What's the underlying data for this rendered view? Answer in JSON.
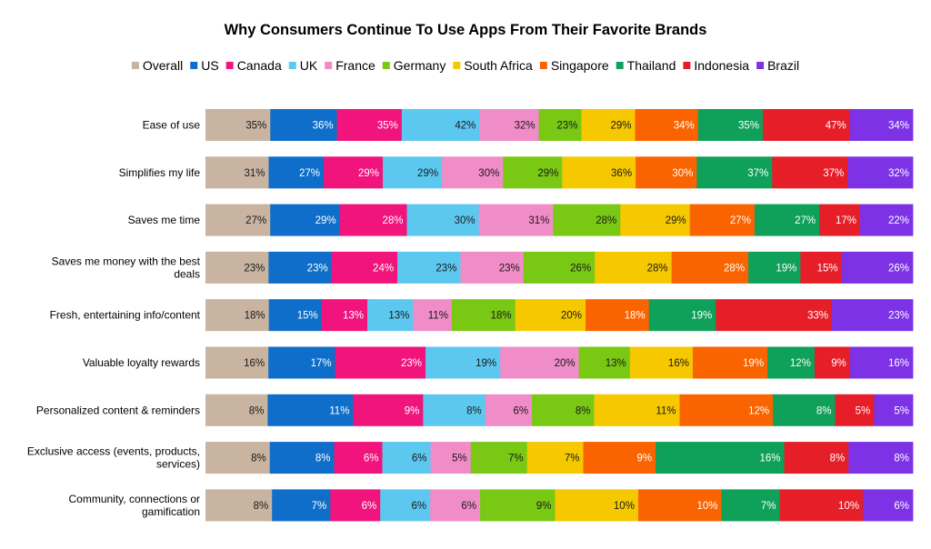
{
  "chart_data": {
    "type": "bar",
    "orientation": "horizontal",
    "stacked": true,
    "title": "Why Consumers Continue To Use Apps From Their Favorite Brands",
    "legend_position": "top",
    "grid": false,
    "value_suffix": "%",
    "categories": [
      "Ease of use",
      "Simplifies my life",
      "Saves me time",
      "Saves me money with the best deals",
      "Fresh, entertaining info/content",
      "Valuable loyalty rewards",
      "Personalized content & reminders",
      "Exclusive access (events, products, services)",
      "Community, connections or gamification"
    ],
    "series": [
      {
        "name": "Overall",
        "color": "#c8b4a0",
        "values": [
          35,
          31,
          27,
          23,
          18,
          16,
          8,
          8,
          8
        ]
      },
      {
        "name": "US",
        "color": "#0f6ec9",
        "values": [
          36,
          27,
          29,
          23,
          15,
          17,
          11,
          8,
          7
        ]
      },
      {
        "name": "Canada",
        "color": "#f0147c",
        "values": [
          35,
          29,
          28,
          24,
          13,
          23,
          9,
          6,
          6
        ]
      },
      {
        "name": "UK",
        "color": "#5cc8f0",
        "values": [
          42,
          29,
          30,
          23,
          13,
          19,
          8,
          6,
          6
        ]
      },
      {
        "name": "France",
        "color": "#f08cc8",
        "values": [
          32,
          30,
          31,
          23,
          11,
          20,
          6,
          5,
          6
        ]
      },
      {
        "name": "Germany",
        "color": "#78c814",
        "values": [
          23,
          29,
          28,
          26,
          18,
          13,
          8,
          7,
          9
        ]
      },
      {
        "name": "South Africa",
        "color": "#f5c800",
        "values": [
          29,
          36,
          29,
          28,
          20,
          16,
          11,
          7,
          10
        ]
      },
      {
        "name": "Singapore",
        "color": "#fa6400",
        "values": [
          34,
          30,
          27,
          28,
          18,
          19,
          12,
          9,
          10
        ]
      },
      {
        "name": "Thailand",
        "color": "#0fa05a",
        "values": [
          35,
          37,
          27,
          19,
          19,
          12,
          8,
          16,
          7
        ]
      },
      {
        "name": "Indonesia",
        "color": "#e61e28",
        "values": [
          47,
          37,
          17,
          15,
          33,
          9,
          5,
          8,
          10
        ]
      },
      {
        "name": "Brazil",
        "color": "#7d32e6",
        "values": [
          34,
          32,
          22,
          26,
          23,
          16,
          5,
          8,
          6
        ]
      }
    ]
  }
}
